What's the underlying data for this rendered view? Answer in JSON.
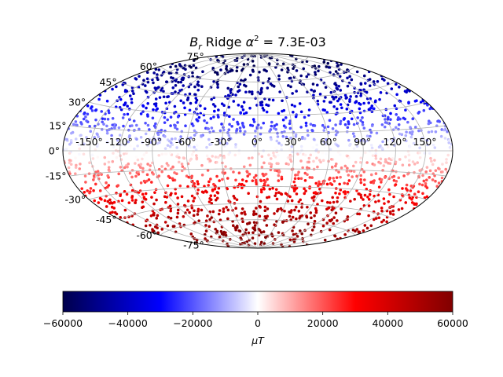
{
  "chart_data": {
    "type": "scatter",
    "projection": "hammer",
    "title_var": "B",
    "title_sub": "r",
    "title_text": " Ridge ",
    "title_alpha": "α",
    "title_pow": "2",
    "title_value": " = 7.3E-03",
    "lon_ticks": [
      -150,
      -120,
      -90,
      -60,
      -30,
      0,
      30,
      60,
      90,
      120,
      150
    ],
    "lat_ticks": [
      -75,
      -60,
      -45,
      -30,
      -15,
      0,
      15,
      30,
      45,
      60,
      75
    ],
    "lon_labels": [
      "-150°",
      "-120°",
      "-90°",
      "-60°",
      "-30°",
      "0°",
      "30°",
      "60°",
      "90°",
      "120°",
      "150°"
    ],
    "lat_labels": [
      "-75°",
      "-60°",
      "-45°",
      "-30°",
      "-15°",
      "0°",
      "15°",
      "30°",
      "45°",
      "60°",
      "75°"
    ],
    "grid": true,
    "colormap": "seismic",
    "colormap_stops": [
      "#00004c",
      "#0000ff",
      "#ffffff",
      "#ff0000",
      "#800000"
    ],
    "clim": [
      -60000,
      60000
    ],
    "colorbar_ticks": [
      -60000,
      -40000,
      -20000,
      0,
      20000,
      40000,
      60000
    ],
    "colorbar_labels": [
      "−60000",
      "−40000",
      "−20000",
      "0",
      "20000",
      "40000",
      "60000"
    ],
    "colorbar_label": "μT",
    "colorbar_position": "bottom",
    "n_points": 2000,
    "value_model": "Br ≈ -60000 · sin(latitude)"
  }
}
